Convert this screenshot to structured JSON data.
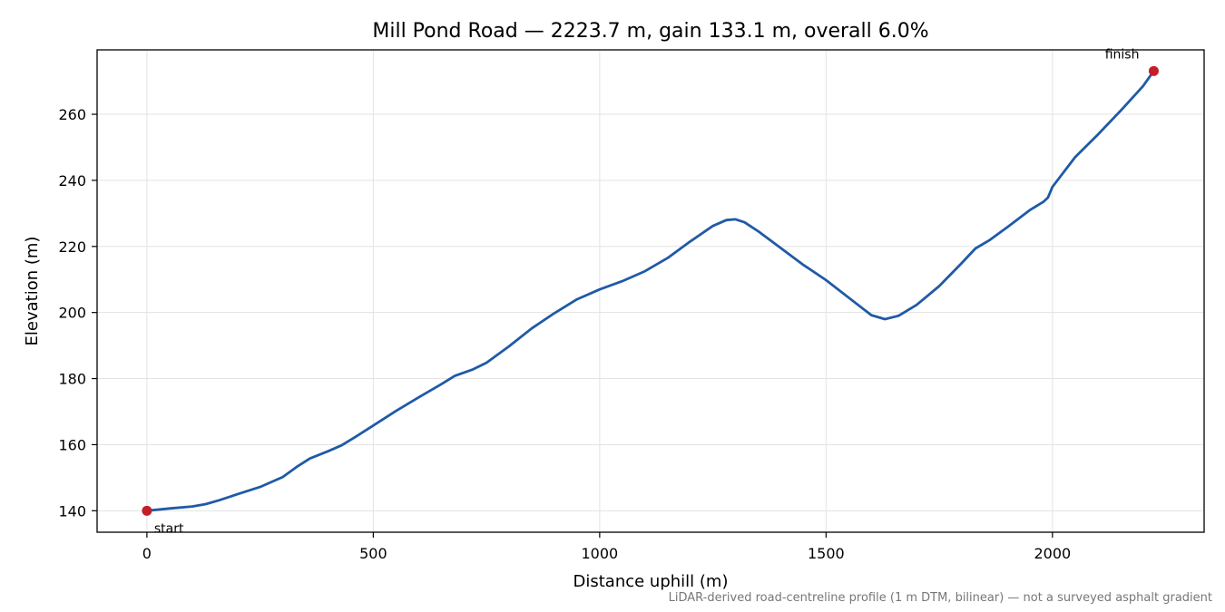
{
  "chart_data": {
    "type": "line",
    "title": "Mill Pond Road — 2223.7 m, gain 133.1 m, overall 6.0%",
    "xlabel": "Distance uphill (m)",
    "ylabel": "Elevation (m)",
    "xlim": [
      -110,
      2335
    ],
    "ylim": [
      133.5,
      279.5
    ],
    "xticks": [
      0,
      500,
      1000,
      1500,
      2000
    ],
    "yticks": [
      140,
      160,
      180,
      200,
      220,
      240,
      260
    ],
    "grid": true,
    "line_color": "#1f5aa6",
    "marker_color": "#c41e2a",
    "series": [
      {
        "x": [
          0,
          50,
          100,
          130,
          160,
          200,
          250,
          300,
          330,
          360,
          400,
          430,
          460,
          500,
          550,
          600,
          650,
          680,
          720,
          750,
          800,
          850,
          900,
          950,
          1000,
          1050,
          1100,
          1150,
          1200,
          1250,
          1280,
          1300,
          1320,
          1350,
          1400,
          1450,
          1500,
          1550,
          1600,
          1630,
          1660,
          1700,
          1750,
          1800,
          1830,
          1860,
          1900,
          1950,
          1980,
          1990,
          2000,
          2050,
          2100,
          2150,
          2200,
          2223.7
        ],
        "y": [
          140,
          140.7,
          141.3,
          142,
          143.2,
          145,
          147.2,
          150.2,
          153.2,
          155.8,
          158,
          159.8,
          162.3,
          165.8,
          170.2,
          174.3,
          178.3,
          180.8,
          182.8,
          184.8,
          189.8,
          195.2,
          199.8,
          204.0,
          207.0,
          209.5,
          212.5,
          216.5,
          221.5,
          226.2,
          228.0,
          228.2,
          227.3,
          224.6,
          219.5,
          214.4,
          209.8,
          204.5,
          199.2,
          198.0,
          199.0,
          202.3,
          208.0,
          215.0,
          219.4,
          221.8,
          225.8,
          231.0,
          233.5,
          234.8,
          238.0,
          247.0,
          253.8,
          261.0,
          268.5,
          273.1
        ]
      }
    ],
    "annotations": [
      {
        "label": "start",
        "x": 0,
        "y": 140
      },
      {
        "label": "finish",
        "x": 2223.7,
        "y": 273.1
      }
    ],
    "footnote": "LiDAR-derived road-centreline profile (1 m DTM, bilinear) — not a surveyed asphalt gradient"
  }
}
